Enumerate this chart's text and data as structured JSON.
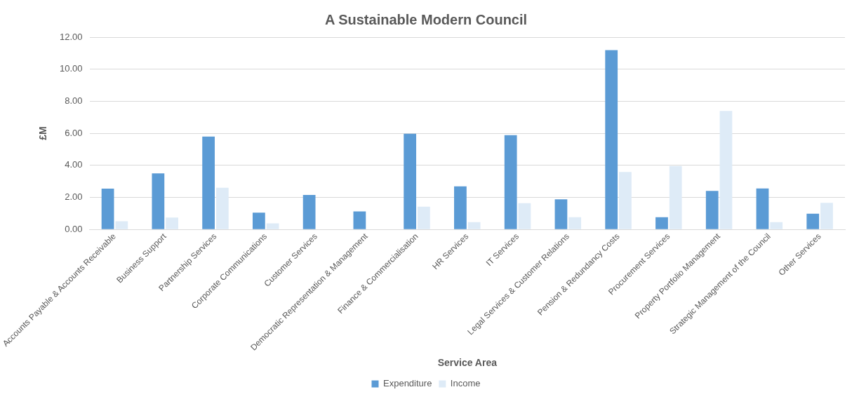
{
  "chart_data": {
    "type": "bar",
    "title": "A Sustainable Modern Council",
    "xlabel": "Service Area",
    "ylabel": "£M",
    "categories": [
      "Accounts Payable & Accounts Receivable",
      "Business Support",
      "Partnership Services",
      "Corporate Communications",
      "Customer Services",
      "Democratic Representation & Management",
      "Finance & Commercialisation",
      "HR Services",
      "IT Services",
      "Legal Services & Customer Relations",
      "Pension & Redundancy Costs",
      "Procurement Services",
      "Property Portfolio Management",
      "Strategic Management of the Council",
      "Other Services"
    ],
    "series": [
      {
        "name": "Expenditure",
        "color": "#5b9bd5",
        "values": [
          2.55,
          3.5,
          5.8,
          1.05,
          2.16,
          1.13,
          5.97,
          2.69,
          5.89,
          1.88,
          11.19,
          0.77,
          2.41,
          2.56,
          0.99
        ]
      },
      {
        "name": "Income",
        "color": "#deebf7",
        "values": [
          0.52,
          0.75,
          2.6,
          0.38,
          0,
          0,
          1.42,
          0.46,
          1.64,
          0.77,
          3.59,
          3.96,
          7.4,
          0.46,
          1.66
        ]
      }
    ],
    "ylim": [
      0,
      12
    ],
    "yticks": [
      {
        "value": 0,
        "label": "0.00"
      },
      {
        "value": 2,
        "label": "2.00"
      },
      {
        "value": 4,
        "label": "4.00"
      },
      {
        "value": 6,
        "label": "6.00"
      },
      {
        "value": 8,
        "label": "8.00"
      },
      {
        "value": 10,
        "label": "10.00"
      },
      {
        "value": 12,
        "label": "12.00"
      }
    ],
    "grid": "y",
    "legend": "bottom"
  }
}
